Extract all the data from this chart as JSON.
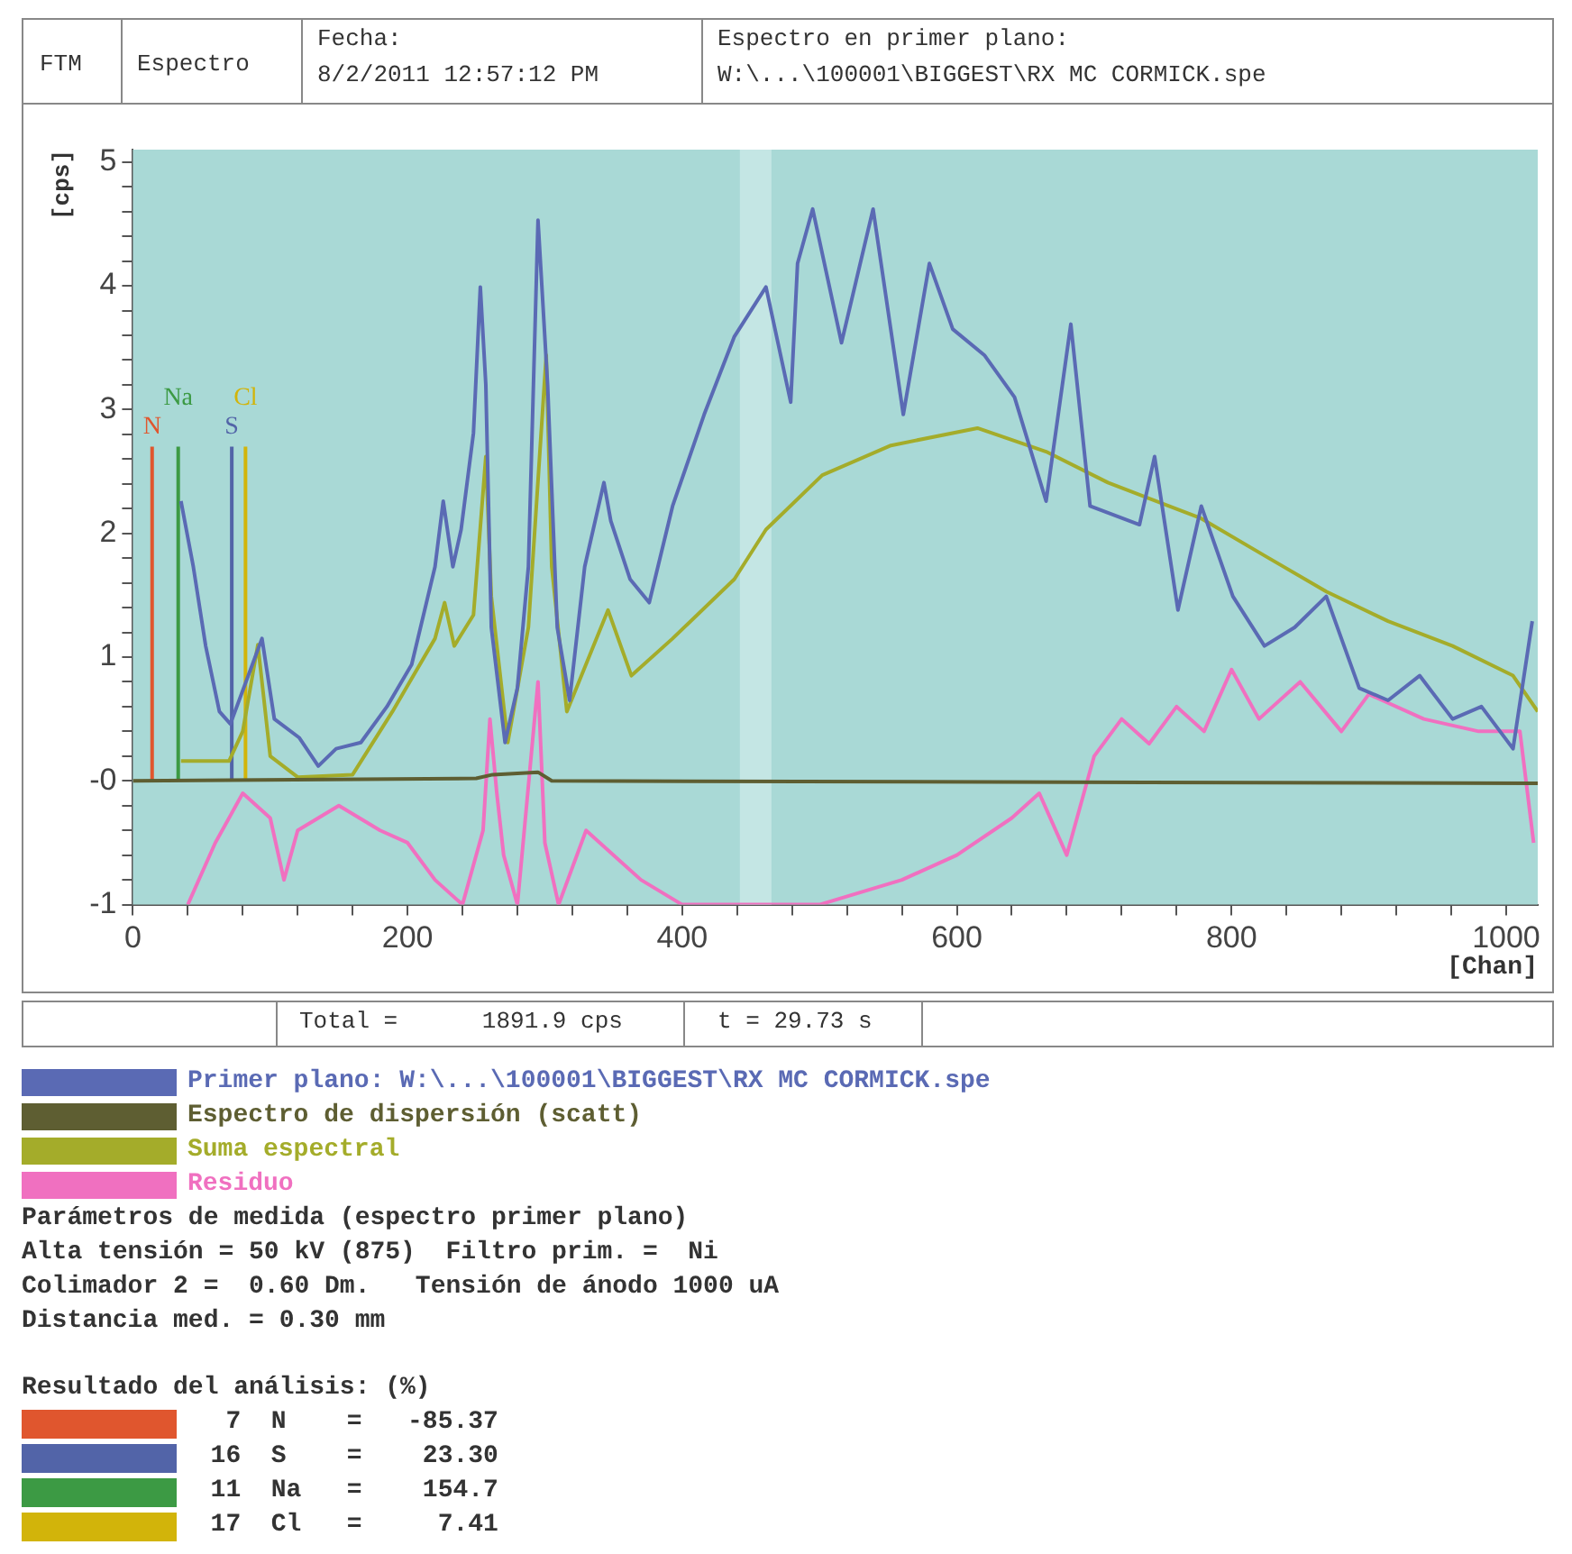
{
  "chart_data": {
    "type": "line",
    "xlabel": "[Chan]",
    "ylabel": "[cps]",
    "xlim": [
      0,
      1023
    ],
    "ylim": [
      -1,
      5.1
    ],
    "xticks": [
      0,
      {
        "value": 40,
        "label": null
      },
      {
        "value": 80,
        "label": null
      },
      {
        "value": 120,
        "label": null
      },
      {
        "value": 160,
        "label": null
      },
      200,
      {
        "value": 240,
        "label": null
      },
      {
        "value": 280,
        "label": null
      },
      {
        "value": 320,
        "label": null
      },
      {
        "value": 360,
        "label": null
      },
      400,
      {
        "value": 440,
        "label": null
      },
      {
        "value": 480,
        "label": null
      },
      {
        "value": 520,
        "label": null
      },
      {
        "value": 560,
        "label": null
      },
      600,
      {
        "value": 640,
        "label": null
      },
      {
        "value": 680,
        "label": null
      },
      {
        "value": 720,
        "label": null
      },
      {
        "value": 760,
        "label": null
      },
      800,
      {
        "value": 840,
        "label": null
      },
      {
        "value": 880,
        "label": null
      },
      {
        "value": 920,
        "label": null
      },
      {
        "value": 960,
        "label": null
      },
      1000
    ],
    "yticks": [
      -1,
      {
        "value": -0.8,
        "label": null
      },
      {
        "value": -0.6,
        "label": null
      },
      {
        "value": -0.4,
        "label": null
      },
      {
        "value": -0.2,
        "label": null
      },
      {
        "value": 0,
        "label": "-0"
      },
      {
        "value": 0.2,
        "label": null
      },
      {
        "value": 0.4,
        "label": null
      },
      {
        "value": 0.6,
        "label": null
      },
      {
        "value": 0.8,
        "label": null
      },
      1,
      {
        "value": 1.2,
        "label": null
      },
      {
        "value": 1.4,
        "label": null
      },
      {
        "value": 1.6,
        "label": null
      },
      {
        "value": 1.8,
        "label": null
      },
      2,
      {
        "value": 2.2,
        "label": null
      },
      {
        "value": 2.4,
        "label": null
      },
      {
        "value": 2.6,
        "label": null
      },
      {
        "value": 2.8,
        "label": null
      },
      3,
      {
        "value": 3.2,
        "label": null
      },
      {
        "value": 3.4,
        "label": null
      },
      {
        "value": 3.6,
        "label": null
      },
      {
        "value": 3.8,
        "label": null
      },
      4,
      {
        "value": 4.2,
        "label": null
      },
      {
        "value": 4.4,
        "label": null
      },
      {
        "value": 4.6,
        "label": null
      },
      {
        "value": 4.8,
        "label": null
      },
      5
    ],
    "legend": "bottom",
    "marker": "none",
    "line_style": "solid",
    "bands": [
      {
        "axis": "x",
        "from": 442,
        "to": 465,
        "color": "#c4e6e4"
      }
    ],
    "series": [
      {
        "name": "Primer plano: W:\\...\\100001\\BIGGEST\\RX MC CORMICK.spe",
        "color": "#5a6ab4",
        "x": [
          35,
          44,
          53,
          63,
          71,
          94,
          103,
          121,
          135,
          148,
          166,
          185,
          203,
          220,
          226,
          233,
          239,
          248,
          253,
          257,
          261,
          271,
          280,
          288,
          295,
          302,
          309,
          318,
          329,
          343,
          348,
          362,
          376,
          393,
          416,
          438,
          461,
          479,
          484,
          495,
          516,
          539,
          561,
          580,
          597,
          620,
          642,
          665,
          683,
          697,
          733,
          744,
          761,
          778,
          801,
          824,
          846,
          869,
          893,
          914,
          937,
          961,
          982,
          1005,
          1019
        ],
        "values": [
          2.26,
          1.73,
          1.09,
          0.56,
          0.46,
          1.15,
          0.5,
          0.35,
          0.12,
          0.26,
          0.31,
          0.6,
          0.94,
          1.73,
          2.26,
          1.73,
          2.03,
          2.81,
          3.99,
          3.2,
          1.24,
          0.31,
          0.75,
          1.73,
          4.53,
          3.2,
          1.24,
          0.65,
          1.73,
          2.41,
          2.1,
          1.63,
          1.44,
          2.22,
          2.96,
          3.59,
          3.99,
          3.06,
          4.18,
          4.62,
          3.54,
          4.62,
          2.96,
          4.18,
          3.65,
          3.44,
          3.1,
          2.26,
          3.69,
          2.22,
          2.07,
          2.62,
          1.38,
          2.22,
          1.49,
          1.09,
          1.24,
          1.49,
          0.75,
          0.65,
          0.85,
          0.5,
          0.6,
          0.26,
          1.29
        ]
      },
      {
        "name": "Espectro de dispersión (scatt)",
        "color": "#5e5e32",
        "x": [
          0,
          250,
          262,
          295,
          305,
          1023
        ],
        "values": [
          0,
          0.02,
          0.05,
          0.07,
          0,
          -0.02
        ]
      },
      {
        "name": "Suma espectral",
        "color": "#a4ac2a",
        "x": [
          35,
          70,
          80,
          91,
          100,
          120,
          160,
          189,
          220,
          227,
          234,
          248,
          257,
          261,
          273,
          288,
          301,
          305,
          316,
          346,
          363,
          393,
          438,
          461,
          502,
          552,
          615,
          665,
          710,
          778,
          824,
          869,
          914,
          961,
          1005,
          1023
        ],
        "values": [
          0.16,
          0.16,
          0.4,
          1.1,
          0.2,
          0.03,
          0.05,
          0.56,
          1.15,
          1.44,
          1.09,
          1.34,
          2.62,
          1.49,
          0.31,
          1.24,
          3.44,
          1.73,
          0.56,
          1.38,
          0.85,
          1.15,
          1.63,
          2.03,
          2.47,
          2.71,
          2.85,
          2.66,
          2.41,
          2.12,
          1.82,
          1.53,
          1.29,
          1.09,
          0.85,
          0.56
        ]
      },
      {
        "name": "Residuo",
        "color": "#f070c0",
        "x": [
          40,
          60,
          80,
          100,
          110,
          120,
          150,
          180,
          200,
          220,
          240,
          255,
          260,
          265,
          270,
          280,
          295,
          300,
          310,
          330,
          350,
          370,
          400,
          450,
          500,
          560,
          600,
          640,
          660,
          680,
          700,
          720,
          740,
          760,
          780,
          800,
          820,
          850,
          880,
          900,
          940,
          980,
          1010,
          1020
        ],
        "values": [
          -1,
          -0.5,
          -0.1,
          -0.3,
          -0.8,
          -0.4,
          -0.2,
          -0.4,
          -0.5,
          -0.8,
          -1,
          -0.4,
          0.5,
          -0.1,
          -0.6,
          -1,
          0.8,
          -0.5,
          -1,
          -0.4,
          -0.6,
          -0.8,
          -1,
          -1,
          -1,
          -0.8,
          -0.6,
          -0.3,
          -0.1,
          -0.6,
          0.2,
          0.5,
          0.3,
          0.6,
          0.4,
          0.9,
          0.5,
          0.8,
          0.4,
          0.7,
          0.5,
          0.4,
          0.4,
          -0.5
        ]
      },
      {
        "name": "N",
        "type": "line",
        "color": "#e0562e",
        "x": [
          14,
          14
        ],
        "values": [
          0,
          2.7
        ]
      },
      {
        "name": "S",
        "type": "line",
        "color": "#5264a8",
        "x": [
          72,
          72
        ],
        "values": [
          0,
          2.7
        ]
      },
      {
        "name": "Na",
        "type": "line",
        "color": "#3c9a44",
        "x": [
          33,
          33
        ],
        "values": [
          0,
          2.7
        ]
      },
      {
        "name": "Cl",
        "type": "line",
        "color": "#d2b40a",
        "x": [
          82,
          82
        ],
        "values": [
          0,
          2.7
        ]
      }
    ],
    "annotations": [
      "FTM",
      "Espectro",
      "Fecha:",
      "8/2/2011 12:57:12 PM",
      "Espectro en primer plano:",
      "W:\\...\\100001\\BIGGEST\\RX MC CORMICK.spe",
      "Total =      1891.9 cps",
      "t = 29.73 s",
      "Parámetros de medida (espectro primer plano)",
      "Alta tensión = 50 kV (875)  Filtro prim. =  Ni",
      "Colimador 2 =  0.60 Dm.   Tensión de ánodo 1000 uA",
      "Distancia med. = 0.30 mm",
      "Resultado del análisis: (%)",
      "   7  N    =   -85.37",
      "  16  S    =    23.30",
      "  11  Na   =    154.7",
      "  17  Cl   =     7.41"
    ]
  }
}
